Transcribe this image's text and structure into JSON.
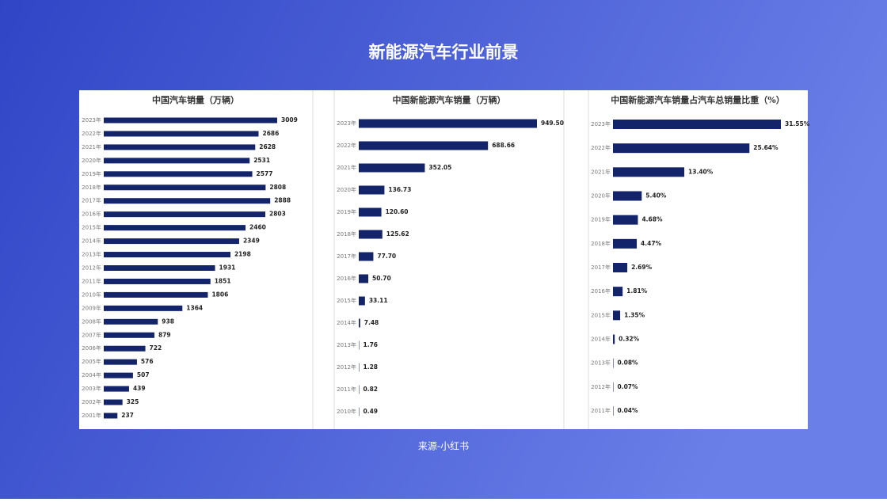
{
  "title": "新能源汽车行业前景",
  "source": "来源-小红书",
  "chart_data": [
    {
      "type": "bar",
      "orientation": "horizontal",
      "title": "中国汽车销量（万辆）",
      "color": "#13246b",
      "categories": [
        "2023年",
        "2022年",
        "2021年",
        "2020年",
        "2019年",
        "2018年",
        "2017年",
        "2016年",
        "2015年",
        "2014年",
        "2013年",
        "2012年",
        "2011年",
        "2010年",
        "2009年",
        "2008年",
        "2007年",
        "2006年",
        "2005年",
        "2004年",
        "2003年",
        "2002年",
        "2001年"
      ],
      "values": [
        3009,
        2686,
        2628,
        2531,
        2577,
        2808,
        2888,
        2803,
        2460,
        2349,
        2198,
        1931,
        1851,
        1806,
        1364,
        938,
        879,
        722,
        576,
        507,
        439,
        325,
        237
      ]
    },
    {
      "type": "bar",
      "orientation": "horizontal",
      "title": "中国新能源汽车销量（万辆）",
      "color": "#13246b",
      "categories": [
        "2023年",
        "2022年",
        "2021年",
        "2020年",
        "2019年",
        "2018年",
        "2017年",
        "2016年",
        "2015年",
        "2014年",
        "2013年",
        "2012年",
        "2011年",
        "2010年"
      ],
      "values": [
        949.5,
        688.66,
        352.05,
        136.73,
        120.6,
        125.62,
        77.7,
        50.7,
        33.11,
        7.48,
        1.76,
        1.28,
        0.82,
        0.49
      ],
      "value_labels": [
        "949.50",
        "688.66",
        "352.05",
        "136.73",
        "120.60",
        "125.62",
        "77.70",
        "50.70",
        "33.11",
        "7.48",
        "1.76",
        "1.28",
        "0.82",
        "0.49"
      ]
    },
    {
      "type": "bar",
      "orientation": "horizontal",
      "title": "中国新能源汽车销量占汽车总销量比重（%）",
      "color": "#13246b",
      "categories": [
        "2023年",
        "2022年",
        "2021年",
        "2020年",
        "2019年",
        "2018年",
        "2017年",
        "2016年",
        "2015年",
        "2014年",
        "2013年",
        "2012年",
        "2011年"
      ],
      "values": [
        31.55,
        25.64,
        13.4,
        5.4,
        4.68,
        4.47,
        2.69,
        1.81,
        1.35,
        0.32,
        0.08,
        0.07,
        0.04
      ],
      "value_labels": [
        "31.55%",
        "25.64%",
        "13.40%",
        "5.40%",
        "4.68%",
        "4.47%",
        "2.69%",
        "1.81%",
        "1.35%",
        "0.32%",
        "0.08%",
        "0.07%",
        "0.04%"
      ]
    }
  ]
}
